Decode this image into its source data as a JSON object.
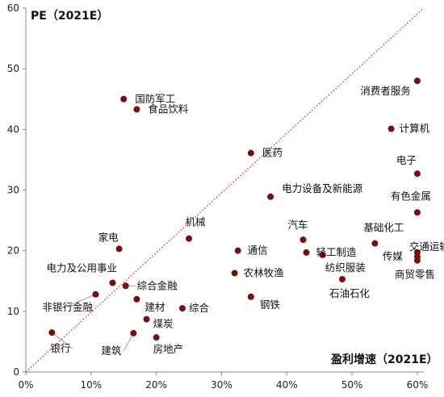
{
  "chart_data": {
    "type": "scatter",
    "title": "PE（2021E）",
    "xlabel": "盈利增速（2021E）",
    "ylabel": "",
    "xlim": [
      0,
      0.61
    ],
    "ylim": [
      0,
      60
    ],
    "x_ticks": [
      "0%",
      "10%",
      "20%",
      "30%",
      "40%",
      "50%",
      "60%"
    ],
    "y_ticks": [
      "0",
      "10",
      "20",
      "30",
      "40",
      "50",
      "60"
    ],
    "grid": false,
    "reference_line": {
      "style": "dotted",
      "color": "#d62728",
      "from": [
        0,
        0
      ],
      "to": [
        0.61,
        60
      ]
    },
    "colors": {
      "point": "#7a0e0e",
      "reference": "#d62728",
      "axis": "#888888"
    },
    "points": [
      {
        "label": "国防军工",
        "x": 0.15,
        "y": 45.0
      },
      {
        "label": "食品饮料",
        "x": 0.17,
        "y": 43.3
      },
      {
        "label": "消费者服务",
        "x": 0.6,
        "y": 48.0
      },
      {
        "label": "计算机",
        "x": 0.56,
        "y": 40.1
      },
      {
        "label": "医药",
        "x": 0.345,
        "y": 36.1
      },
      {
        "label": "电子",
        "x": 0.6,
        "y": 32.7
      },
      {
        "label": "电力设备及新能源",
        "x": 0.375,
        "y": 28.9
      },
      {
        "label": "有色金属",
        "x": 0.6,
        "y": 26.3
      },
      {
        "label": "机械",
        "x": 0.25,
        "y": 22.0
      },
      {
        "label": "家电",
        "x": 0.143,
        "y": 20.3
      },
      {
        "label": "通信",
        "x": 0.325,
        "y": 20.0
      },
      {
        "label": "汽车",
        "x": 0.425,
        "y": 21.8
      },
      {
        "label": "轻工制造",
        "x": 0.43,
        "y": 19.7
      },
      {
        "label": "纺织服装",
        "x": 0.455,
        "y": 19.3
      },
      {
        "label": "基础化工",
        "x": 0.535,
        "y": 21.2
      },
      {
        "label": "交通运输",
        "x": 0.6,
        "y": 19.7
      },
      {
        "label": "传媒",
        "x": 0.6,
        "y": 19.0
      },
      {
        "label": "商贸零售",
        "x": 0.6,
        "y": 18.4
      },
      {
        "label": "农林牧渔",
        "x": 0.32,
        "y": 16.3
      },
      {
        "label": "石油石化",
        "x": 0.485,
        "y": 15.3
      },
      {
        "label": "电力及公用事业",
        "x": 0.133,
        "y": 14.7
      },
      {
        "label": "综合金融",
        "x": 0.153,
        "y": 14.2
      },
      {
        "label": "非银行金融",
        "x": 0.107,
        "y": 12.8
      },
      {
        "label": "钢铁",
        "x": 0.345,
        "y": 12.4
      },
      {
        "label": "建材",
        "x": 0.17,
        "y": 12.0
      },
      {
        "label": "综合",
        "x": 0.24,
        "y": 10.5
      },
      {
        "label": "煤炭",
        "x": 0.185,
        "y": 8.7
      },
      {
        "label": "建筑",
        "x": 0.165,
        "y": 6.4
      },
      {
        "label": "房地产",
        "x": 0.2,
        "y": 5.7
      },
      {
        "label": "银行",
        "x": 0.04,
        "y": 6.5
      }
    ]
  }
}
